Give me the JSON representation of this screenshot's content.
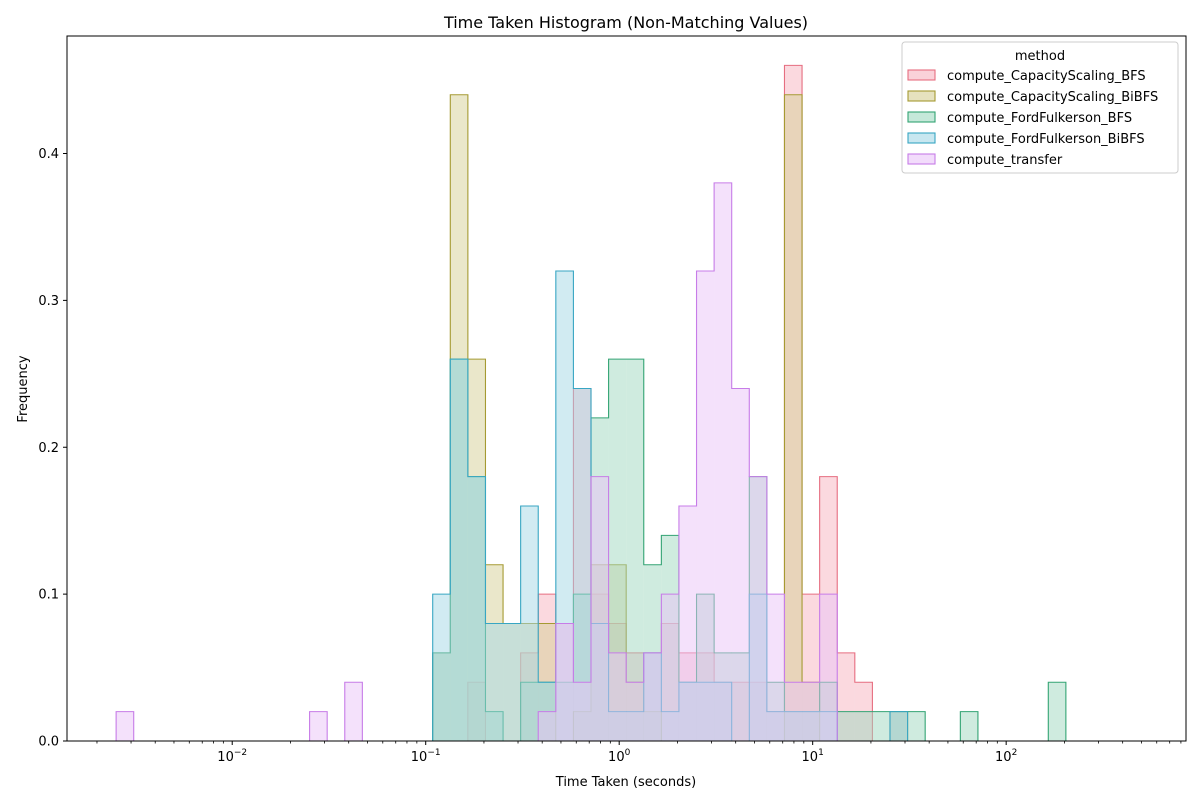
{
  "chart_data": {
    "type": "histogram",
    "title": "Time Taken Histogram (Non-Matching Values)",
    "xlabel": "Time Taken (seconds)",
    "ylabel": "Frequency",
    "x_scale": "log",
    "xlim": [
      0.0014,
      850
    ],
    "ylim": [
      0,
      0.48
    ],
    "bin_width_log10": 0.0909,
    "bin_origin_log10": -2.6,
    "x_ticks": [
      {
        "value": 0.01,
        "base": "10",
        "exp": "−2"
      },
      {
        "value": 0.1,
        "base": "10",
        "exp": "−1"
      },
      {
        "value": 1,
        "base": "10",
        "exp": "0"
      },
      {
        "value": 10,
        "base": "10",
        "exp": "1"
      },
      {
        "value": 100,
        "base": "10",
        "exp": "2"
      }
    ],
    "y_ticks": [
      {
        "value": 0.0,
        "label": "0.0"
      },
      {
        "value": 0.1,
        "label": "0.1"
      },
      {
        "value": 0.2,
        "label": "0.2"
      },
      {
        "value": 0.3,
        "label": "0.3"
      },
      {
        "value": 0.4,
        "label": "0.4"
      }
    ],
    "legend": {
      "title": "method",
      "position": "top-right"
    },
    "series": [
      {
        "name": "compute_CapacityScaling_BFS",
        "color": "#e66e80",
        "fill": "#f7b3c0",
        "bins": [
          [
            20,
            0.04
          ],
          [
            23,
            0.06
          ],
          [
            24,
            0.1
          ],
          [
            25,
            0.08
          ],
          [
            26,
            0.24
          ],
          [
            27,
            0.1
          ],
          [
            28,
            0.08
          ],
          [
            29,
            0.06
          ],
          [
            30,
            0.06
          ],
          [
            31,
            0.08
          ],
          [
            32,
            0.06
          ],
          [
            33,
            0.06
          ],
          [
            34,
            0.04
          ],
          [
            35,
            0.04
          ],
          [
            36,
            0.04
          ],
          [
            37,
            0.02
          ],
          [
            38,
            0.46
          ],
          [
            39,
            0.1
          ],
          [
            40,
            0.18
          ],
          [
            41,
            0.06
          ],
          [
            42,
            0.04
          ],
          [
            44,
            0.02
          ]
        ]
      },
      {
        "name": "compute_CapacityScaling_BiBFS",
        "color": "#a59a32",
        "fill": "#d6cf95",
        "bins": [
          [
            18,
            0.06
          ],
          [
            19,
            0.44
          ],
          [
            20,
            0.26
          ],
          [
            21,
            0.12
          ],
          [
            22,
            0.08
          ],
          [
            23,
            0.08
          ],
          [
            24,
            0.08
          ],
          [
            26,
            0.02
          ],
          [
            27,
            0.12
          ],
          [
            28,
            0.12
          ],
          [
            29,
            0.04
          ],
          [
            30,
            0.02
          ],
          [
            38,
            0.44
          ],
          [
            39,
            0.04
          ],
          [
            44,
            0.02
          ]
        ]
      },
      {
        "name": "compute_FordFulkerson_BFS",
        "color": "#33a474",
        "fill": "#9fd8bf",
        "bins": [
          [
            18,
            0.06
          ],
          [
            19,
            0.26
          ],
          [
            20,
            0.18
          ],
          [
            21,
            0.02
          ],
          [
            23,
            0.04
          ],
          [
            24,
            0.04
          ],
          [
            25,
            0.04
          ],
          [
            26,
            0.1
          ],
          [
            27,
            0.22
          ],
          [
            28,
            0.26
          ],
          [
            29,
            0.26
          ],
          [
            30,
            0.12
          ],
          [
            31,
            0.14
          ],
          [
            32,
            0.04
          ],
          [
            33,
            0.1
          ],
          [
            34,
            0.06
          ],
          [
            35,
            0.06
          ],
          [
            36,
            0.18
          ],
          [
            37,
            0.04
          ],
          [
            38,
            0.02
          ],
          [
            39,
            0.02
          ],
          [
            40,
            0.04
          ],
          [
            41,
            0.02
          ],
          [
            42,
            0.02
          ],
          [
            43,
            0.02
          ],
          [
            44,
            0.02
          ],
          [
            45,
            0.02
          ],
          [
            48,
            0.02
          ],
          [
            53,
            0.04
          ]
        ]
      },
      {
        "name": "compute_FordFulkerson_BiBFS",
        "color": "#38a6c3",
        "fill": "#a4d7e6",
        "bins": [
          [
            18,
            0.1
          ],
          [
            19,
            0.26
          ],
          [
            20,
            0.18
          ],
          [
            21,
            0.08
          ],
          [
            22,
            0.08
          ],
          [
            23,
            0.16
          ],
          [
            24,
            0.04
          ],
          [
            25,
            0.32
          ],
          [
            26,
            0.24
          ],
          [
            27,
            0.08
          ],
          [
            28,
            0.02
          ],
          [
            29,
            0.02
          ],
          [
            30,
            0.06
          ],
          [
            31,
            0.02
          ],
          [
            32,
            0.04
          ],
          [
            33,
            0.04
          ],
          [
            34,
            0.04
          ],
          [
            36,
            0.1
          ],
          [
            37,
            0.02
          ],
          [
            38,
            0.02
          ],
          [
            39,
            0.02
          ],
          [
            40,
            0.02
          ],
          [
            44,
            0.02
          ]
        ]
      },
      {
        "name": "compute_transfer",
        "color": "#c77ce8",
        "fill": "#eac4f8",
        "bins": [
          [
            0,
            0.02
          ],
          [
            11,
            0.02
          ],
          [
            13,
            0.04
          ],
          [
            24,
            0.02
          ],
          [
            25,
            0.08
          ],
          [
            26,
            0.04
          ],
          [
            27,
            0.18
          ],
          [
            28,
            0.06
          ],
          [
            29,
            0.04
          ],
          [
            30,
            0.06
          ],
          [
            31,
            0.1
          ],
          [
            32,
            0.16
          ],
          [
            33,
            0.32
          ],
          [
            34,
            0.38
          ],
          [
            35,
            0.24
          ],
          [
            36,
            0.18
          ],
          [
            37,
            0.1
          ],
          [
            38,
            0.04
          ],
          [
            39,
            0.04
          ],
          [
            40,
            0.1
          ]
        ]
      }
    ]
  }
}
